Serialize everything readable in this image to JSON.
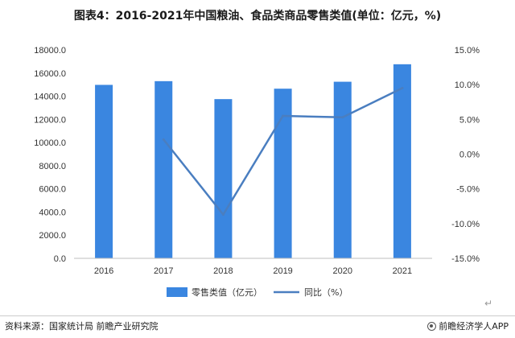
{
  "title": "图表4：2016-2021年中国粮油、食品类商品零售类值(单位：亿元，%)",
  "footer": {
    "source": "资料来源：国家统计局 前瞻产业研究院",
    "brand": "前瞻经济学人APP"
  },
  "colors": {
    "bar": "#3a86e0",
    "line": "#4a7ec0",
    "axis": "#bfbfbf"
  },
  "chart_data": {
    "type": "bar+line",
    "categories": [
      "2016",
      "2017",
      "2018",
      "2019",
      "2020",
      "2021"
    ],
    "series": [
      {
        "name": "零售类值（亿元）",
        "type": "bar",
        "axis": "left",
        "values": [
          14980,
          15300,
          13750,
          14650,
          15250,
          16760
        ]
      },
      {
        "name": "同比（%）",
        "type": "line",
        "axis": "right",
        "values": [
          null,
          2.1,
          -8.7,
          5.5,
          5.3,
          9.5
        ]
      }
    ],
    "y_left": {
      "ylim": [
        0,
        18000
      ],
      "ticks": [
        "0.0",
        "2000.0",
        "4000.0",
        "6000.0",
        "8000.0",
        "10000.0",
        "12000.0",
        "14000.0",
        "16000.0",
        "18000.0"
      ]
    },
    "y_right": {
      "ylim": [
        -15,
        15
      ],
      "ticks": [
        "-15.0%",
        "-10.0%",
        "-5.0%",
        "0.0%",
        "5.0%",
        "10.0%",
        "15.0%"
      ]
    },
    "legend_position": "bottom",
    "grid": false
  }
}
